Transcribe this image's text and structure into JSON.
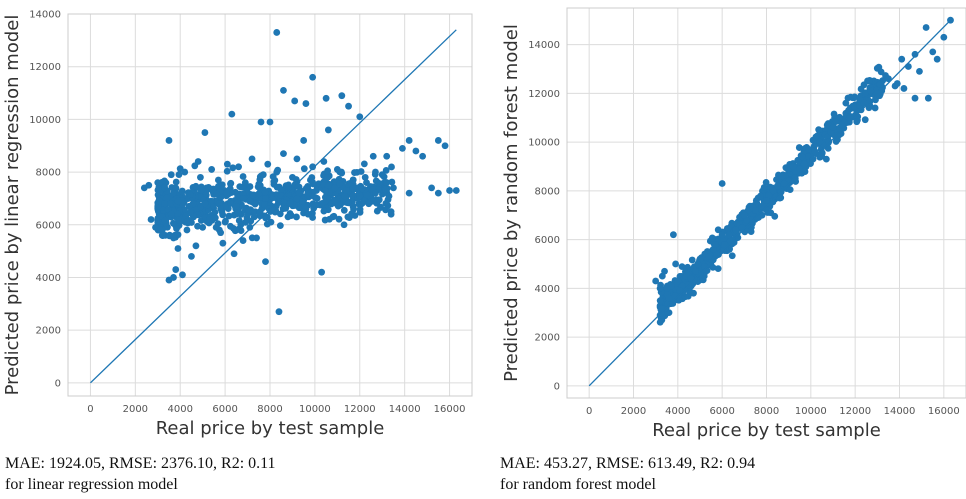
{
  "chart_data": [
    {
      "type": "scatter",
      "xlabel": "Real price by test sample",
      "ylabel": "Predicted price by linear regression model",
      "xlim": [
        -1000,
        17000
      ],
      "ylim": [
        -500,
        14000
      ],
      "xticks": [
        0,
        2000,
        4000,
        6000,
        8000,
        10000,
        12000,
        14000,
        16000
      ],
      "yticks": [
        0,
        2000,
        4000,
        6000,
        8000,
        10000,
        12000,
        14000
      ],
      "grid": true,
      "point_color": "#1f77b4",
      "reference_line": {
        "x": [
          0,
          16300
        ],
        "y": [
          0,
          13400
        ]
      },
      "points": [
        [
          8300,
          13300
        ],
        [
          8600,
          11100
        ],
        [
          9900,
          11600
        ],
        [
          11200,
          10900
        ],
        [
          10500,
          10800
        ],
        [
          6300,
          10200
        ],
        [
          7600,
          9900
        ],
        [
          9100,
          10700
        ],
        [
          9600,
          10600
        ],
        [
          8000,
          9900
        ],
        [
          11500,
          10500
        ],
        [
          12000,
          10100
        ],
        [
          10600,
          9600
        ],
        [
          5100,
          9500
        ],
        [
          3500,
          9200
        ],
        [
          9500,
          9200
        ],
        [
          14200,
          9200
        ],
        [
          15500,
          9200
        ],
        [
          15800,
          9000
        ],
        [
          13900,
          8900
        ],
        [
          13200,
          8600
        ],
        [
          14800,
          8600
        ],
        [
          12600,
          8600
        ],
        [
          14500,
          8800
        ],
        [
          16000,
          7300
        ],
        [
          15500,
          7200
        ],
        [
          16300,
          7300
        ],
        [
          14200,
          7200
        ],
        [
          13000,
          7900
        ],
        [
          15200,
          7400
        ],
        [
          3000,
          7600
        ],
        [
          2600,
          7500
        ],
        [
          3300,
          7400
        ],
        [
          2400,
          7400
        ],
        [
          2700,
          6200
        ],
        [
          2900,
          5900
        ],
        [
          3100,
          5800
        ],
        [
          3200,
          5600
        ],
        [
          3700,
          5500
        ],
        [
          3900,
          5100
        ],
        [
          4500,
          4800
        ],
        [
          3800,
          4300
        ],
        [
          4100,
          4100
        ],
        [
          3500,
          3900
        ],
        [
          3700,
          4000
        ],
        [
          7800,
          4600
        ],
        [
          10300,
          4200
        ],
        [
          8400,
          2700
        ],
        [
          6400,
          4900
        ],
        [
          5900,
          5300
        ],
        [
          11300,
          6000
        ],
        [
          10800,
          6300
        ],
        [
          8800,
          6300
        ],
        [
          9700,
          6400
        ],
        [
          7400,
          5500
        ],
        [
          6800,
          5400
        ],
        [
          5600,
          5900
        ],
        [
          4700,
          5200
        ],
        [
          11900,
          7000
        ],
        [
          12400,
          6800
        ],
        [
          12700,
          7200
        ],
        [
          13500,
          7400
        ],
        [
          12300,
          7600
        ],
        [
          11700,
          7700
        ],
        [
          11000,
          8100
        ],
        [
          10400,
          8400
        ],
        [
          9900,
          8200
        ],
        [
          9200,
          8500
        ],
        [
          8600,
          8700
        ],
        [
          7900,
          8300
        ],
        [
          7200,
          8500
        ],
        [
          6600,
          8200
        ],
        [
          6100,
          8300
        ],
        [
          5400,
          8100
        ],
        [
          4800,
          8400
        ],
        [
          4200,
          8000
        ],
        [
          3600,
          7900
        ],
        [
          4900,
          7800
        ],
        [
          5700,
          7700
        ],
        [
          6900,
          7600
        ],
        [
          7700,
          7900
        ],
        [
          8300,
          8000
        ],
        [
          9000,
          7800
        ],
        [
          9800,
          7700
        ],
        [
          10600,
          7500
        ],
        [
          11400,
          7300
        ],
        [
          12000,
          7100
        ],
        [
          3900,
          6900
        ],
        [
          4400,
          6700
        ],
        [
          5100,
          6800
        ],
        [
          5800,
          6600
        ],
        [
          6500,
          6700
        ],
        [
          7100,
          6900
        ],
        [
          7800,
          7000
        ],
        [
          8500,
          7100
        ],
        [
          9300,
          7200
        ],
        [
          10100,
          7000
        ],
        [
          10900,
          6900
        ],
        [
          3300,
          6800
        ],
        [
          3600,
          6400
        ],
        [
          4600,
          6300
        ],
        [
          5300,
          6200
        ],
        [
          6000,
          6100
        ],
        [
          6700,
          6000
        ],
        [
          7300,
          6300
        ],
        [
          8100,
          6600
        ],
        [
          8900,
          6800
        ],
        [
          9600,
          6600
        ],
        [
          10300,
          6800
        ],
        [
          4300,
          5800
        ],
        [
          5000,
          5900
        ],
        [
          5800,
          5700
        ],
        [
          6500,
          5800
        ],
        [
          7100,
          5900
        ]
      ]
    },
    {
      "type": "scatter",
      "xlabel": "Real price by test sample",
      "ylabel": "Predicted price by random forest model",
      "xlim": [
        -1000,
        17000
      ],
      "ylim": [
        -500,
        15500
      ],
      "xticks": [
        0,
        2000,
        4000,
        6000,
        8000,
        10000,
        12000,
        14000,
        16000
      ],
      "yticks": [
        0,
        2000,
        4000,
        6000,
        8000,
        10000,
        12000,
        14000
      ],
      "grid": true,
      "point_color": "#1f77b4",
      "reference_line": {
        "x": [
          0,
          16300
        ],
        "y": [
          0,
          15000
        ]
      },
      "points": [
        [
          16300,
          15000
        ],
        [
          15200,
          14700
        ],
        [
          16000,
          14300
        ],
        [
          15500,
          13700
        ],
        [
          15700,
          13400
        ],
        [
          14700,
          13600
        ],
        [
          14400,
          13100
        ],
        [
          14900,
          12900
        ],
        [
          13800,
          12300
        ],
        [
          13500,
          12600
        ],
        [
          14200,
          12200
        ],
        [
          12700,
          12100
        ],
        [
          13100,
          11900
        ],
        [
          15300,
          11800
        ],
        [
          14700,
          11800
        ],
        [
          12900,
          11400
        ],
        [
          12200,
          11500
        ],
        [
          11700,
          11300
        ],
        [
          11500,
          10800
        ],
        [
          12100,
          10900
        ],
        [
          10900,
          10400
        ],
        [
          11200,
          10100
        ],
        [
          10600,
          9900
        ],
        [
          10200,
          9600
        ],
        [
          10700,
          9300
        ],
        [
          9700,
          9100
        ],
        [
          9900,
          9700
        ],
        [
          9300,
          8800
        ],
        [
          9000,
          8400
        ],
        [
          8700,
          8600
        ],
        [
          8300,
          8000
        ],
        [
          8600,
          7700
        ],
        [
          7900,
          7500
        ],
        [
          7400,
          7300
        ],
        [
          7800,
          7000
        ],
        [
          7100,
          6800
        ],
        [
          6800,
          6600
        ],
        [
          6500,
          6300
        ],
        [
          6000,
          8300
        ],
        [
          6100,
          5800
        ],
        [
          5600,
          5600
        ],
        [
          5300,
          5400
        ],
        [
          5000,
          5200
        ],
        [
          4700,
          4800
        ],
        [
          4400,
          4600
        ],
        [
          4000,
          4300
        ],
        [
          3700,
          4100
        ],
        [
          3300,
          4500
        ],
        [
          3000,
          4300
        ],
        [
          3400,
          4700
        ],
        [
          3800,
          6200
        ],
        [
          3900,
          5000
        ],
        [
          3500,
          4000
        ],
        [
          3200,
          4000
        ],
        [
          3600,
          3600
        ],
        [
          4200,
          4100
        ],
        [
          4600,
          4400
        ],
        [
          4900,
          5000
        ],
        [
          5400,
          5300
        ],
        [
          5800,
          5900
        ],
        [
          6300,
          6200
        ],
        [
          6900,
          6500
        ],
        [
          7500,
          7200
        ],
        [
          8100,
          7800
        ],
        [
          8800,
          8300
        ],
        [
          9500,
          8900
        ],
        [
          10100,
          9300
        ],
        [
          10800,
          10000
        ],
        [
          11400,
          10700
        ],
        [
          12000,
          11100
        ],
        [
          12600,
          11700
        ],
        [
          13200,
          12100
        ],
        [
          13900,
          12400
        ],
        [
          14100,
          13400
        ],
        [
          8500,
          8200
        ],
        [
          9200,
          9000
        ],
        [
          7600,
          6900
        ],
        [
          6600,
          6400
        ],
        [
          5200,
          4900
        ],
        [
          4100,
          3900
        ],
        [
          4800,
          4700
        ],
        [
          5700,
          5800
        ],
        [
          7000,
          7000
        ],
        [
          8000,
          7600
        ],
        [
          9600,
          9400
        ],
        [
          10400,
          10000
        ],
        [
          11000,
          10600
        ],
        [
          11800,
          11000
        ],
        [
          12400,
          11600
        ],
        [
          13000,
          12000
        ]
      ]
    }
  ],
  "captions": [
    {
      "line1": "MAE: 1924.05, RMSE: 2376.10, R2:  0.11",
      "line2": "for linear regression model"
    },
    {
      "line1": "MAE:  453.27, RMSE:  613.49,  R2: 0.94",
      "line2": "for random forest model"
    }
  ]
}
